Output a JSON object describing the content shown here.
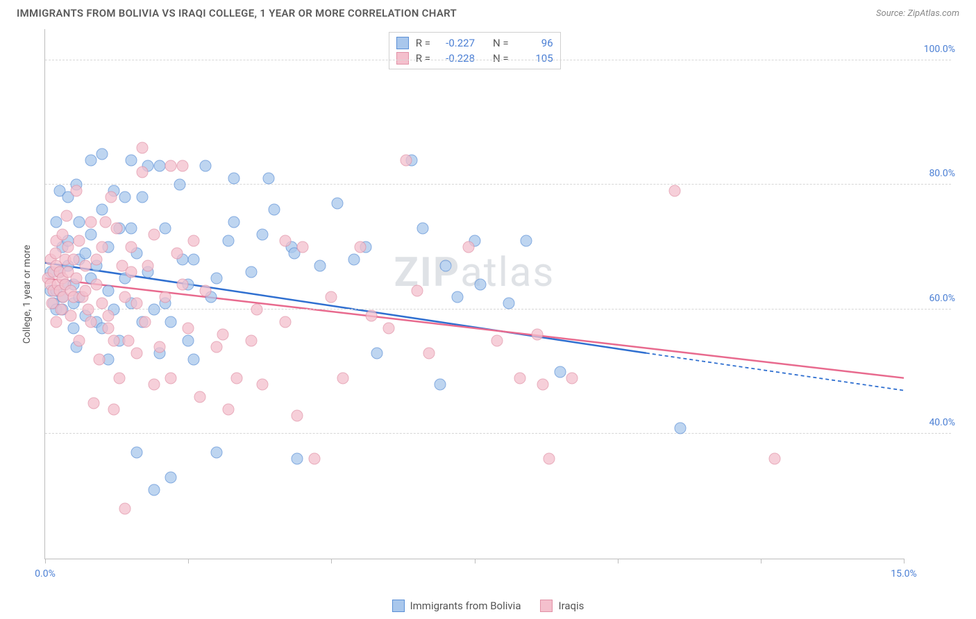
{
  "header": {
    "title": "IMMIGRANTS FROM BOLIVIA VS IRAQI COLLEGE, 1 YEAR OR MORE CORRELATION CHART",
    "source_label": "Source:",
    "source_name": "ZipAtlas.com"
  },
  "watermark": {
    "bold": "ZIP",
    "rest": "atlas"
  },
  "chart": {
    "type": "scatter",
    "y_axis_label": "College, 1 year or more",
    "xlim": [
      0,
      15
    ],
    "ylim": [
      20,
      105
    ],
    "x_ticks": [
      0,
      2.5,
      5,
      7.5,
      10,
      12.5,
      15
    ],
    "x_tick_labels": {
      "0": "0.0%",
      "15": "15.0%"
    },
    "y_ticks": [
      40,
      60,
      80,
      100
    ],
    "y_tick_labels": [
      "40.0%",
      "60.0%",
      "80.0%",
      "100.0%"
    ],
    "grid_color": "#d6d6d6",
    "axis_color": "#bdbdbd",
    "tick_label_color": "#4b7fd4",
    "tick_label_fontsize": 14,
    "background_color": "#ffffff",
    "point_radius": 8.5,
    "series": [
      {
        "name": "Immigrants from Bolivia",
        "fill": "#a9c7ec",
        "stroke": "#5a8fd6",
        "opacity": 0.75,
        "line_color": "#2f6fd0",
        "R": "-0.227",
        "N": "96",
        "trend": {
          "x1": 0.0,
          "y1": 67.5,
          "x2": 10.5,
          "y2": 53.0,
          "dash_x2": 15.0,
          "dash_y2": 47.0
        },
        "points": [
          [
            0.1,
            63
          ],
          [
            0.1,
            66
          ],
          [
            0.15,
            61
          ],
          [
            0.2,
            63
          ],
          [
            0.2,
            74
          ],
          [
            0.2,
            60
          ],
          [
            0.25,
            79
          ],
          [
            0.25,
            66
          ],
          [
            0.3,
            62
          ],
          [
            0.3,
            70
          ],
          [
            0.3,
            60
          ],
          [
            0.35,
            64
          ],
          [
            0.4,
            67
          ],
          [
            0.4,
            78
          ],
          [
            0.4,
            71
          ],
          [
            0.5,
            64
          ],
          [
            0.5,
            57
          ],
          [
            0.5,
            61
          ],
          [
            0.55,
            54
          ],
          [
            0.55,
            80
          ],
          [
            0.6,
            74
          ],
          [
            0.6,
            68
          ],
          [
            0.6,
            62
          ],
          [
            0.7,
            59
          ],
          [
            0.7,
            69
          ],
          [
            0.8,
            84
          ],
          [
            0.8,
            65
          ],
          [
            0.8,
            72
          ],
          [
            0.9,
            67
          ],
          [
            0.9,
            58
          ],
          [
            1.0,
            85
          ],
          [
            1.0,
            57
          ],
          [
            1.0,
            76
          ],
          [
            1.1,
            70
          ],
          [
            1.1,
            63
          ],
          [
            1.1,
            52
          ],
          [
            1.2,
            79
          ],
          [
            1.2,
            60
          ],
          [
            1.3,
            73
          ],
          [
            1.3,
            55
          ],
          [
            1.4,
            65
          ],
          [
            1.4,
            78
          ],
          [
            1.5,
            84
          ],
          [
            1.5,
            73
          ],
          [
            1.5,
            61
          ],
          [
            1.6,
            69
          ],
          [
            1.6,
            37
          ],
          [
            1.7,
            58
          ],
          [
            1.7,
            78
          ],
          [
            1.8,
            66
          ],
          [
            1.8,
            83
          ],
          [
            1.9,
            60
          ],
          [
            1.9,
            31
          ],
          [
            2.0,
            83
          ],
          [
            2.0,
            53
          ],
          [
            2.1,
            73
          ],
          [
            2.1,
            61
          ],
          [
            2.2,
            33
          ],
          [
            2.2,
            58
          ],
          [
            2.35,
            80
          ],
          [
            2.4,
            68
          ],
          [
            2.5,
            64
          ],
          [
            2.5,
            55
          ],
          [
            2.6,
            68
          ],
          [
            2.6,
            52
          ],
          [
            2.8,
            83
          ],
          [
            2.9,
            62
          ],
          [
            3.0,
            65
          ],
          [
            3.0,
            37
          ],
          [
            3.2,
            71
          ],
          [
            3.3,
            81
          ],
          [
            3.3,
            74
          ],
          [
            3.6,
            66
          ],
          [
            3.8,
            72
          ],
          [
            3.9,
            81
          ],
          [
            4.0,
            76
          ],
          [
            4.3,
            70
          ],
          [
            4.35,
            69
          ],
          [
            4.4,
            36
          ],
          [
            4.8,
            67
          ],
          [
            5.1,
            77
          ],
          [
            5.4,
            68
          ],
          [
            5.6,
            70
          ],
          [
            5.8,
            53
          ],
          [
            6.4,
            84
          ],
          [
            6.6,
            73
          ],
          [
            6.9,
            48
          ],
          [
            7.0,
            67
          ],
          [
            7.2,
            62
          ],
          [
            7.5,
            71
          ],
          [
            7.6,
            64
          ],
          [
            8.1,
            61
          ],
          [
            8.4,
            71
          ],
          [
            9.0,
            50
          ],
          [
            11.1,
            41
          ]
        ]
      },
      {
        "name": "Iraqis",
        "fill": "#f4c0cd",
        "stroke": "#e191a6",
        "opacity": 0.75,
        "line_color": "#e86a8e",
        "R": "-0.228",
        "N": "105",
        "trend": {
          "x1": 0.0,
          "y1": 65.0,
          "x2": 15.0,
          "y2": 49.0
        },
        "points": [
          [
            0.05,
            65
          ],
          [
            0.1,
            64
          ],
          [
            0.1,
            68
          ],
          [
            0.12,
            61
          ],
          [
            0.15,
            66
          ],
          [
            0.15,
            63
          ],
          [
            0.18,
            69
          ],
          [
            0.2,
            67
          ],
          [
            0.2,
            71
          ],
          [
            0.2,
            58
          ],
          [
            0.22,
            64
          ],
          [
            0.25,
            63
          ],
          [
            0.25,
            66
          ],
          [
            0.28,
            60
          ],
          [
            0.3,
            65
          ],
          [
            0.3,
            72
          ],
          [
            0.32,
            62
          ],
          [
            0.35,
            68
          ],
          [
            0.35,
            64
          ],
          [
            0.38,
            75
          ],
          [
            0.4,
            66
          ],
          [
            0.4,
            70
          ],
          [
            0.45,
            63
          ],
          [
            0.45,
            59
          ],
          [
            0.5,
            68
          ],
          [
            0.5,
            62
          ],
          [
            0.55,
            79
          ],
          [
            0.55,
            65
          ],
          [
            0.6,
            71
          ],
          [
            0.6,
            55
          ],
          [
            0.65,
            62
          ],
          [
            0.7,
            63
          ],
          [
            0.7,
            67
          ],
          [
            0.75,
            60
          ],
          [
            0.8,
            74
          ],
          [
            0.8,
            58
          ],
          [
            0.85,
            45
          ],
          [
            0.9,
            64
          ],
          [
            0.9,
            68
          ],
          [
            0.95,
            52
          ],
          [
            1.0,
            70
          ],
          [
            1.0,
            61
          ],
          [
            1.05,
            74
          ],
          [
            1.1,
            57
          ],
          [
            1.1,
            59
          ],
          [
            1.15,
            78
          ],
          [
            1.2,
            55
          ],
          [
            1.2,
            44
          ],
          [
            1.25,
            73
          ],
          [
            1.3,
            49
          ],
          [
            1.35,
            67
          ],
          [
            1.4,
            62
          ],
          [
            1.4,
            28
          ],
          [
            1.45,
            55
          ],
          [
            1.5,
            70
          ],
          [
            1.5,
            66
          ],
          [
            1.6,
            53
          ],
          [
            1.6,
            61
          ],
          [
            1.7,
            82
          ],
          [
            1.7,
            86
          ],
          [
            1.75,
            58
          ],
          [
            1.8,
            67
          ],
          [
            1.9,
            48
          ],
          [
            1.9,
            72
          ],
          [
            2.0,
            54
          ],
          [
            2.1,
            62
          ],
          [
            2.2,
            49
          ],
          [
            2.2,
            83
          ],
          [
            2.3,
            69
          ],
          [
            2.4,
            64
          ],
          [
            2.4,
            83
          ],
          [
            2.5,
            57
          ],
          [
            2.6,
            71
          ],
          [
            2.7,
            46
          ],
          [
            2.8,
            63
          ],
          [
            3.0,
            54
          ],
          [
            3.1,
            56
          ],
          [
            3.2,
            44
          ],
          [
            3.35,
            49
          ],
          [
            3.6,
            55
          ],
          [
            3.7,
            60
          ],
          [
            3.8,
            48
          ],
          [
            4.2,
            71
          ],
          [
            4.2,
            58
          ],
          [
            4.4,
            43
          ],
          [
            4.5,
            70
          ],
          [
            4.7,
            36
          ],
          [
            5.0,
            62
          ],
          [
            5.2,
            49
          ],
          [
            5.5,
            70
          ],
          [
            5.7,
            59
          ],
          [
            6.0,
            57
          ],
          [
            6.3,
            84
          ],
          [
            6.5,
            63
          ],
          [
            6.7,
            53
          ],
          [
            7.4,
            70
          ],
          [
            7.9,
            55
          ],
          [
            8.3,
            49
          ],
          [
            8.6,
            56
          ],
          [
            8.7,
            48
          ],
          [
            8.8,
            36
          ],
          [
            9.2,
            49
          ],
          [
            11.0,
            79
          ],
          [
            12.75,
            36
          ]
        ]
      }
    ]
  },
  "stats_legend": {
    "rows": [
      {
        "swatch_fill": "#a9c7ec",
        "swatch_stroke": "#5a8fd6",
        "R": "-0.227",
        "N": "96"
      },
      {
        "swatch_fill": "#f4c0cd",
        "swatch_stroke": "#e191a6",
        "R": "-0.228",
        "N": "105"
      }
    ],
    "R_label": "R =",
    "N_label": "N ="
  },
  "bottom_legend": {
    "items": [
      {
        "swatch_fill": "#a9c7ec",
        "swatch_stroke": "#5a8fd6",
        "label": "Immigrants from Bolivia"
      },
      {
        "swatch_fill": "#f4c0cd",
        "swatch_stroke": "#e191a6",
        "label": "Iraqis"
      }
    ]
  }
}
